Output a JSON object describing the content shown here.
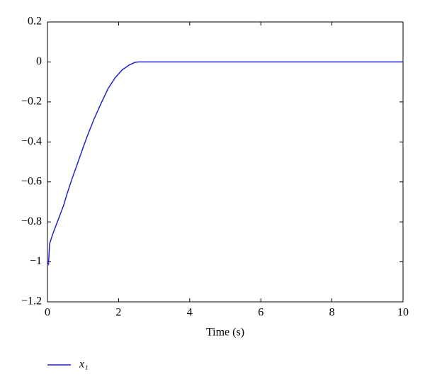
{
  "chart_data": {
    "type": "line",
    "xlabel": "Time (s)",
    "x": [
      0,
      0.03,
      0.06,
      0.15,
      0.3,
      0.45,
      0.55,
      0.7,
      0.9,
      1.1,
      1.3,
      1.5,
      1.7,
      1.9,
      2.1,
      2.3,
      2.45,
      2.55,
      3,
      4,
      5,
      6,
      7,
      8,
      9,
      10
    ],
    "series": [
      {
        "name": "x₁",
        "color": "#2222cc",
        "values": [
          -1.0,
          -1.01,
          -0.91,
          -0.86,
          -0.79,
          -0.72,
          -0.66,
          -0.58,
          -0.48,
          -0.38,
          -0.29,
          -0.21,
          -0.135,
          -0.08,
          -0.04,
          -0.015,
          -0.003,
          0,
          0,
          0,
          0,
          0,
          0,
          0,
          0,
          0
        ]
      }
    ],
    "xlim": [
      0,
      10
    ],
    "xticks": [
      0,
      2,
      4,
      6,
      8,
      10
    ],
    "ylim": [
      -1.2,
      0.2
    ],
    "yticks": [
      0.2,
      0,
      {
        "value": -0.2,
        "label": "−0.2"
      },
      {
        "value": -0.4,
        "label": "−0.4"
      },
      {
        "value": -0.6,
        "label": "−0.6"
      },
      {
        "value": -0.8,
        "label": "−0.8"
      },
      {
        "value": -1,
        "label": "−1"
      },
      {
        "value": -1.2,
        "label": "−1.2"
      }
    ],
    "grid": false
  }
}
